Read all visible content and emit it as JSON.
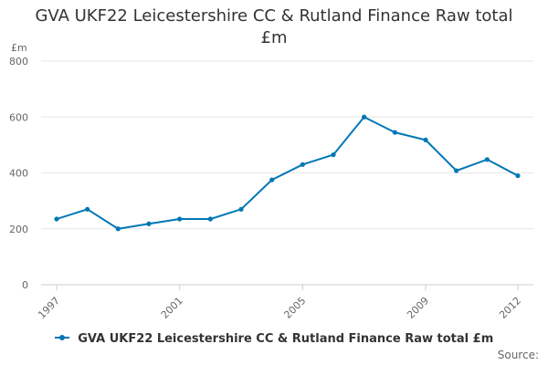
{
  "chart_data": {
    "type": "line",
    "title_lines": [
      "GVA UKF22 Leicestershire CC & Rutland Finance Raw total",
      "£m"
    ],
    "ylabel": "£m",
    "xlabel": "",
    "ylim": [
      0,
      800
    ],
    "yticks": [
      "0",
      "200",
      "400",
      "600",
      "800"
    ],
    "x": [
      1997,
      1998,
      1999,
      2000,
      2001,
      2002,
      2003,
      2004,
      2005,
      2006,
      2007,
      2008,
      2009,
      2010,
      2011,
      2012
    ],
    "xticks": [
      "1997",
      "2001",
      "2005",
      "2009",
      "2012"
    ],
    "grid": "horizontal",
    "legend_position": "bottom",
    "series": [
      {
        "name": "GVA UKF22 Leicestershire CC & Rutland Finance Raw total £m",
        "color": "#0077b5",
        "values": [
          235,
          270,
          200,
          218,
          235,
          235,
          270,
          375,
          430,
          465,
          600,
          545,
          518,
          408,
          448,
          390
        ]
      }
    ]
  },
  "credit": "Source:"
}
